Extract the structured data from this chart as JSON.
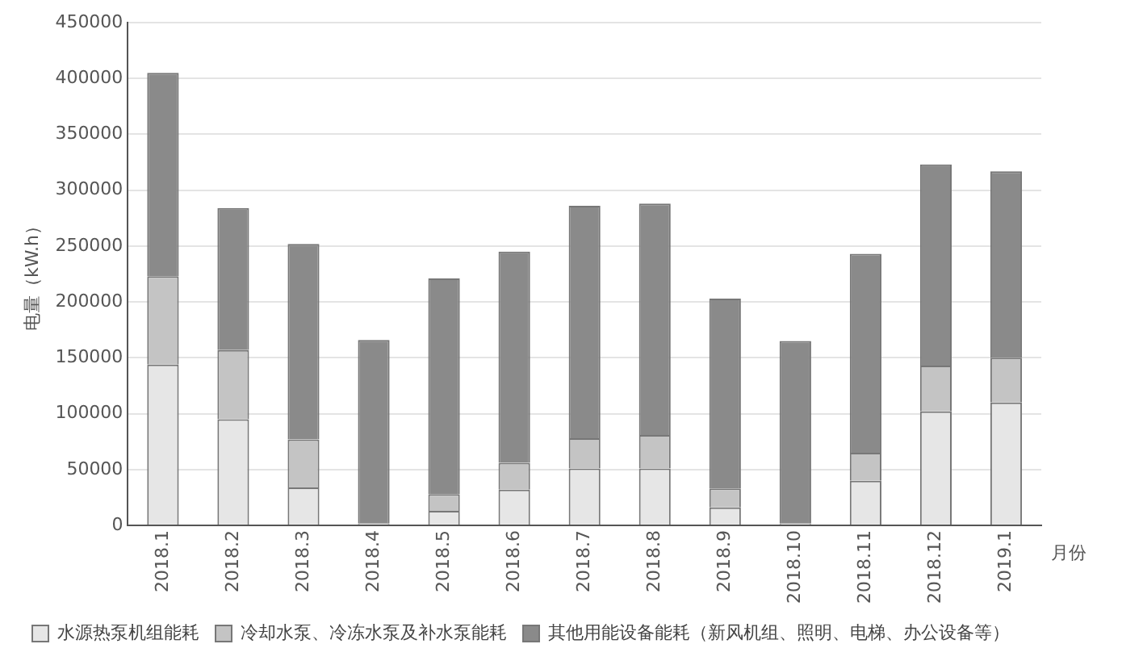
{
  "chart_data": {
    "type": "bar",
    "stacked": true,
    "ylabel": "电量（kW.h）",
    "xlabel": "月份",
    "categories": [
      "2018.1",
      "2018.2",
      "2018.3",
      "2018.4",
      "2018.5",
      "2018.6",
      "2018.7",
      "2018.8",
      "2018.9",
      "2018.10",
      "2018.11",
      "2018.12",
      "2019.1"
    ],
    "series": [
      {
        "name": "水源热泵机组能耗",
        "color": "#e6e6e6",
        "values": [
          144000,
          95000,
          34000,
          1000,
          13000,
          32000,
          51000,
          51000,
          16000,
          1000,
          40000,
          102000,
          110000
        ]
      },
      {
        "name": "冷却水泵、冷冻水泵及补水泵能耗",
        "color": "#c4c4c4",
        "values": [
          79000,
          62000,
          43000,
          1000,
          15000,
          24000,
          27000,
          30000,
          17000,
          1000,
          25000,
          41000,
          40000
        ]
      },
      {
        "name": "其他用能设备能耗（新风机组、照明、电梯、办公设备等）",
        "color": "#8a8a8a",
        "values": [
          182000,
          127000,
          175000,
          164000,
          193000,
          189000,
          208000,
          207000,
          170000,
          163000,
          178000,
          180000,
          167000
        ]
      }
    ],
    "ylim": [
      0,
      450000
    ],
    "yticks": [
      0,
      50000,
      100000,
      150000,
      200000,
      250000,
      300000,
      350000,
      400000,
      450000
    ],
    "grid": "y",
    "legend": "bottom"
  }
}
